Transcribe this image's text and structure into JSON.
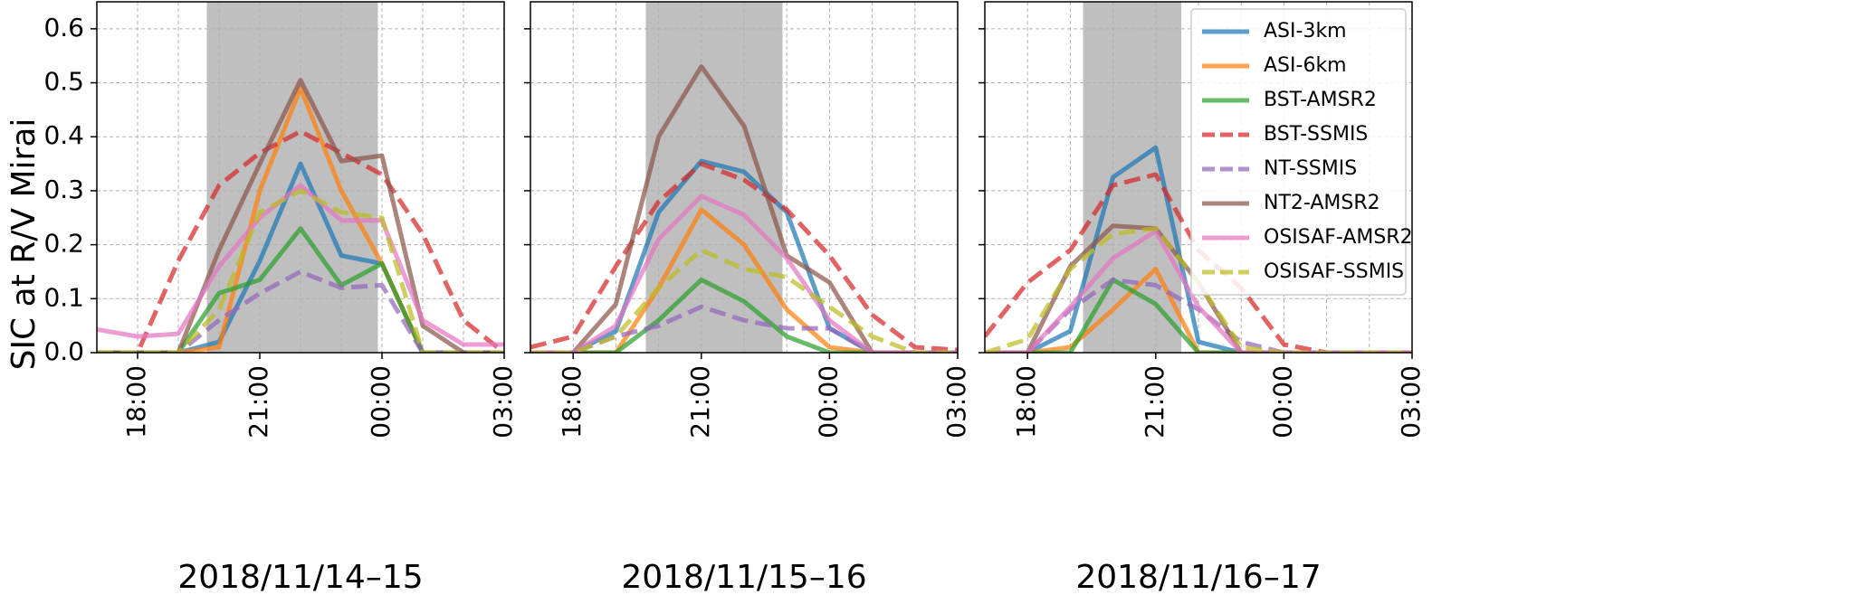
{
  "figure": {
    "ylabel": "SIC at R/V Mirai",
    "yticks": [
      0.0,
      0.1,
      0.2,
      0.3,
      0.4,
      0.5,
      0.6
    ],
    "ytick_labels": [
      "0.0",
      "0.1",
      "0.2",
      "0.3",
      "0.4",
      "0.5",
      "0.6"
    ],
    "xticks": [
      18,
      21,
      24,
      27
    ],
    "xtick_labels": [
      "18:00",
      "21:00",
      "00:00",
      "03:00"
    ]
  },
  "colors": {
    "ASI-3km": "#1f77b4",
    "ASI-6km": "#ff7f0e",
    "BST-AMSR2": "#2ca02c",
    "BST-SSMIS": "#d62728",
    "NT-SSMIS": "#9467bd",
    "NT2-AMSR2": "#8c564b",
    "OSISAF-AMSR2": "#e377c2",
    "OSISAF-SSMIS": "#bcbd22",
    "shade": "#bfbfbf"
  },
  "legend": {
    "placement": "top-right",
    "entries": [
      {
        "name": "ASI-3km",
        "dashed": false
      },
      {
        "name": "ASI-6km",
        "dashed": false
      },
      {
        "name": "BST-AMSR2",
        "dashed": false
      },
      {
        "name": "BST-SSMIS",
        "dashed": true
      },
      {
        "name": "NT-SSMIS",
        "dashed": true
      },
      {
        "name": "NT2-AMSR2",
        "dashed": false
      },
      {
        "name": "OSISAF-AMSR2",
        "dashed": false
      },
      {
        "name": "OSISAF-SSMIS",
        "dashed": true
      }
    ]
  },
  "chart_data": [
    {
      "type": "line",
      "xlabel": "2018/11/14–15",
      "ylabel": "SIC at R/V Mirai",
      "x_unit": "hour",
      "xlim": [
        17,
        27
      ],
      "ylim": [
        0,
        0.65
      ],
      "grid": true,
      "shaded_interval": [
        19.7,
        23.9
      ],
      "series": [
        {
          "name": "ASI-3km",
          "x": [
            17,
            18,
            19,
            20,
            21,
            22,
            23,
            24,
            25,
            26,
            27
          ],
          "y": [
            0.0,
            0.0,
            0.0,
            0.02,
            0.17,
            0.35,
            0.18,
            0.165,
            0.0,
            0.0,
            0.0
          ]
        },
        {
          "name": "ASI-6km",
          "x": [
            17,
            18,
            19,
            20,
            21,
            22,
            23,
            24,
            25,
            26,
            27
          ],
          "y": [
            0.0,
            0.0,
            0.0,
            0.01,
            0.3,
            0.49,
            0.3,
            0.165,
            0.0,
            0.0,
            0.0
          ]
        },
        {
          "name": "BST-AMSR2",
          "x": [
            17,
            18,
            19,
            20,
            21,
            22,
            23,
            24,
            25,
            26,
            27
          ],
          "y": [
            0.0,
            0.0,
            0.0,
            0.11,
            0.135,
            0.23,
            0.125,
            0.165,
            0.0,
            0.0,
            0.0
          ]
        },
        {
          "name": "BST-SSMIS",
          "x": [
            17,
            18,
            19,
            20,
            21,
            22,
            23,
            24,
            25,
            26,
            27
          ],
          "y": [
            0.0,
            0.0,
            0.17,
            0.31,
            0.37,
            0.41,
            0.37,
            0.33,
            0.22,
            0.06,
            0.0
          ]
        },
        {
          "name": "NT-SSMIS",
          "x": [
            17,
            18,
            19,
            20,
            21,
            22,
            23,
            24,
            25,
            26,
            27
          ],
          "y": [
            0.0,
            0.0,
            0.0,
            0.06,
            0.11,
            0.15,
            0.12,
            0.125,
            0.0,
            0.0,
            0.0
          ]
        },
        {
          "name": "NT2-AMSR2",
          "x": [
            17,
            18,
            19,
            20,
            21,
            22,
            23,
            24,
            25,
            26,
            27
          ],
          "y": [
            0.0,
            0.0,
            0.0,
            0.19,
            0.35,
            0.505,
            0.355,
            0.365,
            0.05,
            0.0,
            0.0
          ]
        },
        {
          "name": "OSISAF-AMSR2",
          "x": [
            17,
            18,
            19,
            20,
            21,
            22,
            23,
            24,
            25,
            26,
            27
          ],
          "y": [
            0.043,
            0.03,
            0.035,
            0.16,
            0.25,
            0.31,
            0.245,
            0.245,
            0.06,
            0.015,
            0.015
          ]
        },
        {
          "name": "OSISAF-SSMIS",
          "x": [
            17,
            18,
            19,
            20,
            21,
            22,
            23,
            24,
            25,
            26,
            27
          ],
          "y": [
            0.0,
            0.0,
            0.0,
            0.08,
            0.26,
            0.3,
            0.26,
            0.25,
            0.0,
            0.0,
            0.0
          ]
        }
      ]
    },
    {
      "type": "line",
      "xlabel": "2018/11/15–16",
      "ylabel": "",
      "x_unit": "hour",
      "xlim": [
        17,
        27
      ],
      "ylim": [
        0,
        0.65
      ],
      "grid": true,
      "shaded_interval": [
        19.7,
        22.9
      ],
      "series": [
        {
          "name": "ASI-3km",
          "x": [
            17,
            18,
            19,
            20,
            21,
            22,
            23,
            24,
            25,
            26,
            27
          ],
          "y": [
            0.0,
            0.0,
            0.04,
            0.26,
            0.355,
            0.335,
            0.26,
            0.045,
            0.0,
            0.0,
            0.0
          ]
        },
        {
          "name": "ASI-6km",
          "x": [
            17,
            18,
            19,
            20,
            21,
            22,
            23,
            24,
            25,
            26,
            27
          ],
          "y": [
            0.0,
            0.0,
            0.0,
            0.12,
            0.265,
            0.2,
            0.08,
            0.01,
            0.0,
            0.0,
            0.0
          ]
        },
        {
          "name": "BST-AMSR2",
          "x": [
            17,
            18,
            19,
            20,
            21,
            22,
            23,
            24,
            25,
            26,
            27
          ],
          "y": [
            0.0,
            0.0,
            0.0,
            0.06,
            0.135,
            0.095,
            0.03,
            0.0,
            0.0,
            0.0,
            0.0
          ]
        },
        {
          "name": "BST-SSMIS",
          "x": [
            17,
            18,
            19,
            20,
            21,
            22,
            23,
            24,
            25,
            26,
            27
          ],
          "y": [
            0.01,
            0.03,
            0.16,
            0.28,
            0.35,
            0.32,
            0.265,
            0.18,
            0.07,
            0.01,
            0.005
          ]
        },
        {
          "name": "NT-SSMIS",
          "x": [
            17,
            18,
            19,
            20,
            21,
            22,
            23,
            24,
            25,
            26,
            27
          ],
          "y": [
            0.0,
            0.0,
            0.03,
            0.05,
            0.085,
            0.06,
            0.045,
            0.045,
            0.0,
            0.0,
            0.0
          ]
        },
        {
          "name": "NT2-AMSR2",
          "x": [
            17,
            18,
            19,
            20,
            21,
            22,
            23,
            24,
            25,
            26,
            27
          ],
          "y": [
            0.0,
            0.0,
            0.09,
            0.4,
            0.53,
            0.42,
            0.18,
            0.13,
            0.0,
            0.0,
            0.0
          ]
        },
        {
          "name": "OSISAF-AMSR2",
          "x": [
            17,
            18,
            19,
            20,
            21,
            22,
            23,
            24,
            25,
            26,
            27
          ],
          "y": [
            0.0,
            0.0,
            0.05,
            0.21,
            0.29,
            0.255,
            0.175,
            0.06,
            0.0,
            0.0,
            0.0
          ]
        },
        {
          "name": "OSISAF-SSMIS",
          "x": [
            17,
            18,
            19,
            20,
            21,
            22,
            23,
            24,
            25,
            26,
            27
          ],
          "y": [
            0.0,
            0.0,
            0.03,
            0.12,
            0.19,
            0.155,
            0.14,
            0.085,
            0.03,
            0.0,
            0.0
          ]
        }
      ]
    },
    {
      "type": "line",
      "xlabel": "2018/11/16–17",
      "ylabel": "",
      "x_unit": "hour",
      "xlim": [
        17,
        27
      ],
      "ylim": [
        0,
        0.65
      ],
      "grid": true,
      "shaded_interval": [
        19.3,
        21.6
      ],
      "series": [
        {
          "name": "ASI-3km",
          "x": [
            17,
            18,
            19,
            20,
            21,
            22,
            23,
            24,
            25,
            26,
            27
          ],
          "y": [
            0.0,
            0.0,
            0.04,
            0.325,
            0.38,
            0.02,
            0.0,
            0.0,
            0.0,
            0.0,
            0.0
          ]
        },
        {
          "name": "ASI-6km",
          "x": [
            17,
            18,
            19,
            20,
            21,
            22,
            23,
            24,
            25,
            26,
            27
          ],
          "y": [
            0.0,
            0.0,
            0.01,
            0.08,
            0.155,
            0.0,
            0.0,
            0.0,
            0.0,
            0.0,
            0.0
          ]
        },
        {
          "name": "BST-AMSR2",
          "x": [
            17,
            18,
            19,
            20,
            21,
            22,
            23,
            24,
            25,
            26,
            27
          ],
          "y": [
            0.0,
            0.0,
            0.0,
            0.135,
            0.09,
            0.0,
            0.0,
            0.0,
            0.0,
            0.0,
            0.0
          ]
        },
        {
          "name": "BST-SSMIS",
          "x": [
            17,
            18,
            19,
            20,
            21,
            22,
            23,
            24,
            25,
            26,
            27
          ],
          "y": [
            0.03,
            0.13,
            0.19,
            0.31,
            0.33,
            0.19,
            0.12,
            0.015,
            0.0,
            0.0,
            0.0
          ]
        },
        {
          "name": "NT-SSMIS",
          "x": [
            17,
            18,
            19,
            20,
            21,
            22,
            23,
            24,
            25,
            26,
            27
          ],
          "y": [
            0.0,
            0.0,
            0.08,
            0.135,
            0.125,
            0.08,
            0.02,
            0.0,
            0.0,
            0.0,
            0.0
          ]
        },
        {
          "name": "NT2-AMSR2",
          "x": [
            17,
            18,
            19,
            20,
            21,
            22,
            23,
            24,
            25,
            26,
            27
          ],
          "y": [
            0.0,
            0.0,
            0.16,
            0.235,
            0.23,
            0.13,
            0.0,
            0.0,
            0.0,
            0.0,
            0.0
          ]
        },
        {
          "name": "OSISAF-AMSR2",
          "x": [
            17,
            18,
            19,
            20,
            21,
            22,
            23,
            24,
            25,
            26,
            27
          ],
          "y": [
            0.0,
            0.0,
            0.085,
            0.175,
            0.225,
            0.085,
            0.0,
            0.0,
            0.0,
            0.0,
            0.0
          ]
        },
        {
          "name": "OSISAF-SSMIS",
          "x": [
            17,
            18,
            19,
            20,
            21,
            22,
            23,
            24,
            25,
            26,
            27
          ],
          "y": [
            0.0,
            0.025,
            0.155,
            0.22,
            0.23,
            0.13,
            0.01,
            0.0,
            0.0,
            0.0,
            0.0
          ]
        }
      ]
    }
  ]
}
